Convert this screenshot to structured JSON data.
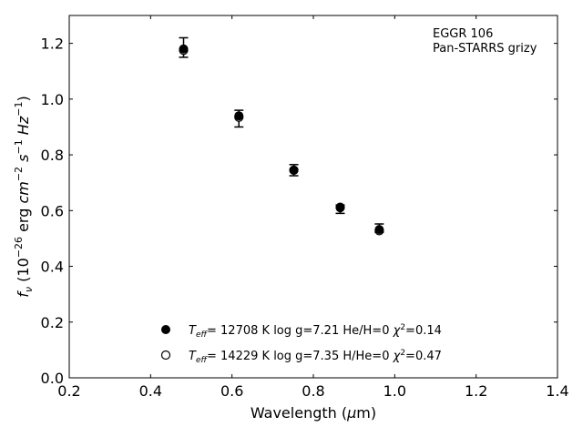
{
  "chart_data": {
    "type": "scatter",
    "xlim": [
      0.2,
      1.4
    ],
    "ylim": [
      0.0,
      1.3
    ],
    "xticks": [
      "0.2",
      "0.4",
      "0.6",
      "0.8",
      "1.0",
      "1.2",
      "1.4"
    ],
    "yticks": [
      "0.0",
      "0.2",
      "0.4",
      "0.6",
      "0.8",
      "1.0",
      "1.2"
    ],
    "xlabel": "Wavelength (μm)",
    "ylabel": "f_ν (10^−26 erg cm^−2 s^−1 Hz^−1)",
    "annotation": [
      "EGGR 106",
      "Pan-STARRS grizy"
    ],
    "grid": false,
    "legend_placement": "lower-center",
    "series": [
      {
        "name": "T_eff= 12708 K  log g=7.21  He/H=0  χ²=0.14",
        "marker": "filled-circle",
        "x": [
          0.481,
          0.617,
          0.752,
          0.866,
          0.962
        ],
        "y": [
          1.18,
          0.94,
          0.745,
          0.61,
          0.532
        ]
      },
      {
        "name": "T_eff= 14229 K  log g=7.35  H/He=0  χ²=0.47",
        "marker": "open-circle",
        "x": [
          0.481,
          0.617,
          0.752,
          0.866,
          0.962
        ],
        "y": [
          1.175,
          0.935,
          0.745,
          0.612,
          0.528
        ]
      }
    ],
    "observed": {
      "x": [
        0.481,
        0.617,
        0.752,
        0.866,
        0.962
      ],
      "y": [
        1.185,
        0.93,
        0.745,
        0.605,
        0.537
      ],
      "yerr": [
        0.035,
        0.03,
        0.02,
        0.015,
        0.015
      ]
    },
    "legend": {
      "entries": [
        {
          "teff": "12708 K",
          "logg": "log g=7.21",
          "comp": "He/H=0",
          "chi": "=0.14"
        },
        {
          "teff": "14229 K",
          "logg": "log g=7.35",
          "comp": "H/He=0",
          "chi": "=0.47"
        }
      ]
    }
  }
}
